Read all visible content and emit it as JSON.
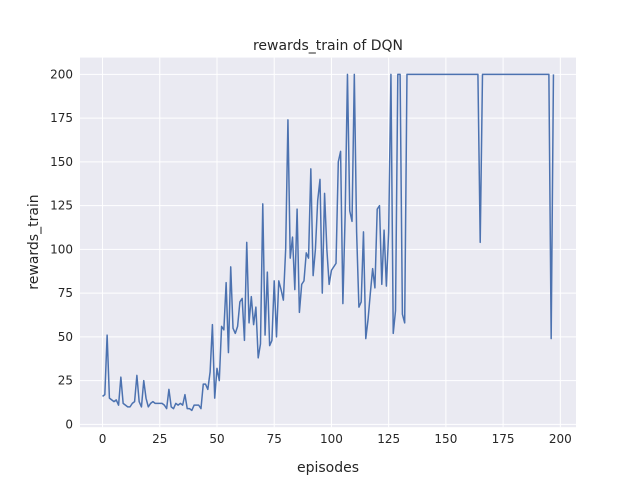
{
  "chart_data": {
    "type": "line",
    "title": "rewards_train of DQN",
    "xlabel": "episodes",
    "ylabel": "rewards_train",
    "xlim": [
      -9.85,
      206.85
    ],
    "ylim": [
      -1.6,
      209.6
    ],
    "xticks": [
      0,
      25,
      50,
      75,
      100,
      125,
      150,
      175,
      200
    ],
    "yticks": [
      0,
      25,
      50,
      75,
      100,
      125,
      150,
      175,
      200
    ],
    "grid": true,
    "background_color": "#eaeaf2",
    "line_color": "#4c72b0",
    "values": [
      16,
      17,
      51,
      15,
      14,
      13,
      14,
      11,
      27,
      12,
      11,
      10,
      10,
      12,
      13,
      28,
      13,
      10,
      25,
      15,
      10,
      12,
      13,
      12,
      12,
      12,
      12,
      11,
      9,
      20,
      10,
      9,
      12,
      11,
      12,
      11,
      17,
      9,
      9,
      8,
      11,
      11,
      11,
      9,
      23,
      23,
      20,
      30,
      57,
      15,
      32,
      25,
      56,
      54,
      81,
      41,
      90,
      55,
      52,
      56,
      70,
      72,
      48,
      104,
      58,
      73,
      57,
      67,
      38,
      46,
      126,
      51,
      87,
      45,
      48,
      82,
      50,
      82,
      77,
      71,
      100,
      174,
      95,
      107,
      77,
      123,
      64,
      80,
      82,
      98,
      95,
      146,
      85,
      100,
      128,
      140,
      75,
      132,
      100,
      80,
      88,
      90,
      92,
      150,
      156,
      69,
      120,
      200,
      122,
      116,
      200,
      110,
      67,
      70,
      110,
      49,
      60,
      75,
      89,
      78,
      123,
      125,
      80,
      111,
      79,
      110,
      200,
      52,
      65,
      200,
      200,
      63,
      58,
      200,
      200,
      200,
      200,
      200,
      200,
      200,
      200,
      200,
      200,
      200,
      200,
      200,
      200,
      200,
      200,
      200,
      200,
      200,
      200,
      200,
      200,
      200,
      200,
      200,
      200,
      200,
      200,
      200,
      200,
      200,
      200,
      104,
      200,
      200,
      200,
      200,
      200,
      200,
      200,
      200,
      200,
      200,
      200,
      200,
      200,
      200,
      200,
      200,
      200,
      200,
      200,
      200,
      200,
      200,
      200,
      200,
      200,
      200,
      200,
      200,
      200,
      200,
      49,
      200
    ]
  }
}
